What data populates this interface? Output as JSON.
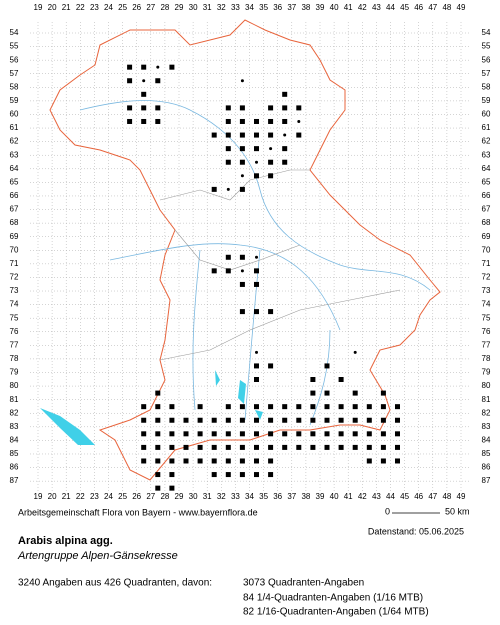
{
  "x_axis": [
    19,
    20,
    21,
    22,
    23,
    24,
    25,
    26,
    27,
    28,
    29,
    30,
    31,
    32,
    33,
    34,
    35,
    36,
    37,
    38,
    39,
    40,
    41,
    42,
    43,
    44,
    45,
    46,
    47,
    48,
    49
  ],
  "y_axis": [
    54,
    55,
    56,
    57,
    58,
    59,
    60,
    61,
    62,
    63,
    64,
    65,
    66,
    67,
    68,
    69,
    70,
    71,
    72,
    73,
    74,
    75,
    76,
    77,
    78,
    79,
    80,
    81,
    82,
    83,
    84,
    85,
    86,
    87
  ],
  "credit": "Arbeitsgemeinschaft Flora von Bayern - www.bayernflora.de",
  "scale": {
    "start": "0",
    "end": "50 km"
  },
  "date": "Datenstand: 05.06.2025",
  "species": {
    "name": "Arabis alpina agg.",
    "common": "Artengruppe Alpen-Gänsekresse"
  },
  "summary": "3240 Angaben aus 426 Quadranten, davon:",
  "breakdown": [
    "3073 Quadranten-Angaben",
    "84 1/4-Quadranten-Angaben (1/16 MTB)",
    "82 1/16-Quadranten-Angaben (1/64 MTB)"
  ]
}
